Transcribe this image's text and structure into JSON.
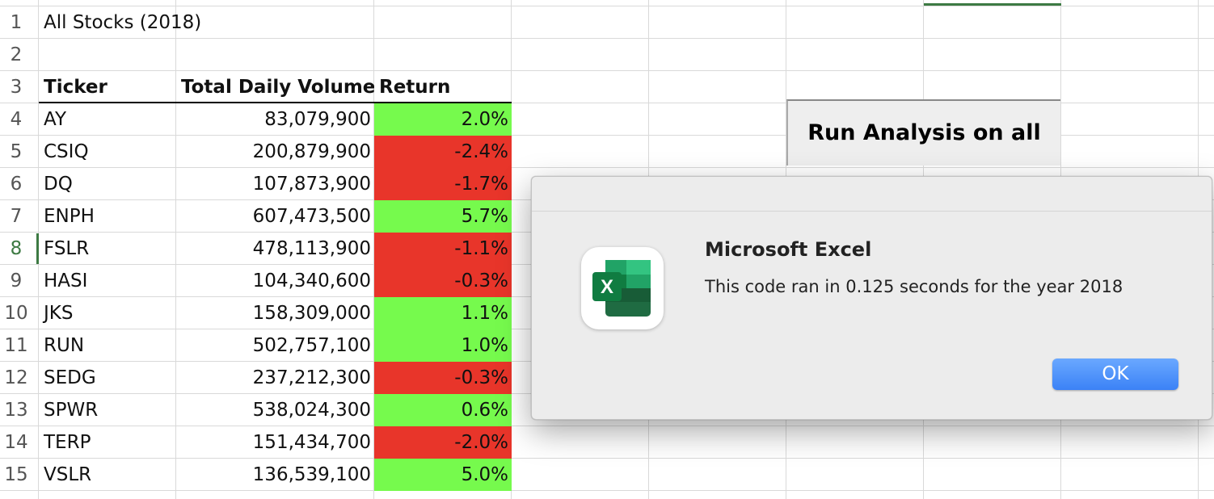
{
  "sheet": {
    "title": "All Stocks (2018)",
    "row_numbers": [
      "1",
      "2",
      "3",
      "4",
      "5",
      "6",
      "7",
      "8",
      "9",
      "10",
      "11",
      "12",
      "13",
      "14",
      "15"
    ],
    "selected_row": "8",
    "headers": {
      "ticker": "Ticker",
      "volume": "Total Daily Volume",
      "return": "Return"
    },
    "rows": [
      {
        "ticker": "AY",
        "volume": "83,079,900",
        "return": "2.0%",
        "positive": true
      },
      {
        "ticker": "CSIQ",
        "volume": "200,879,900",
        "return": "-2.4%",
        "positive": false
      },
      {
        "ticker": "DQ",
        "volume": "107,873,900",
        "return": "-1.7%",
        "positive": false
      },
      {
        "ticker": "ENPH",
        "volume": "607,473,500",
        "return": "5.7%",
        "positive": true
      },
      {
        "ticker": "FSLR",
        "volume": "478,113,900",
        "return": "-1.1%",
        "positive": false
      },
      {
        "ticker": "HASI",
        "volume": "104,340,600",
        "return": "-0.3%",
        "positive": false
      },
      {
        "ticker": "JKS",
        "volume": "158,309,000",
        "return": "1.1%",
        "positive": true
      },
      {
        "ticker": "RUN",
        "volume": "502,757,100",
        "return": "1.0%",
        "positive": true
      },
      {
        "ticker": "SEDG",
        "volume": "237,212,300",
        "return": "-0.3%",
        "positive": false
      },
      {
        "ticker": "SPWR",
        "volume": "538,024,300",
        "return": "0.6%",
        "positive": true
      },
      {
        "ticker": "TERP",
        "volume": "151,434,700",
        "return": "-2.0%",
        "positive": false
      },
      {
        "ticker": "VSLR",
        "volume": "136,539,100",
        "return": "5.0%",
        "positive": true
      }
    ]
  },
  "colors": {
    "positive": "#76fa4d",
    "negative": "#e8352a",
    "accent": "#3d7a43",
    "ok_button": "#3b82f6"
  },
  "run_button": {
    "label": "Run Analysis on all"
  },
  "dialog": {
    "title": "Microsoft Excel",
    "message": "This code ran in 0.125 seconds for the year 2018",
    "ok_label": "OK",
    "icon": "excel-app-icon",
    "icon_letter": "X"
  }
}
